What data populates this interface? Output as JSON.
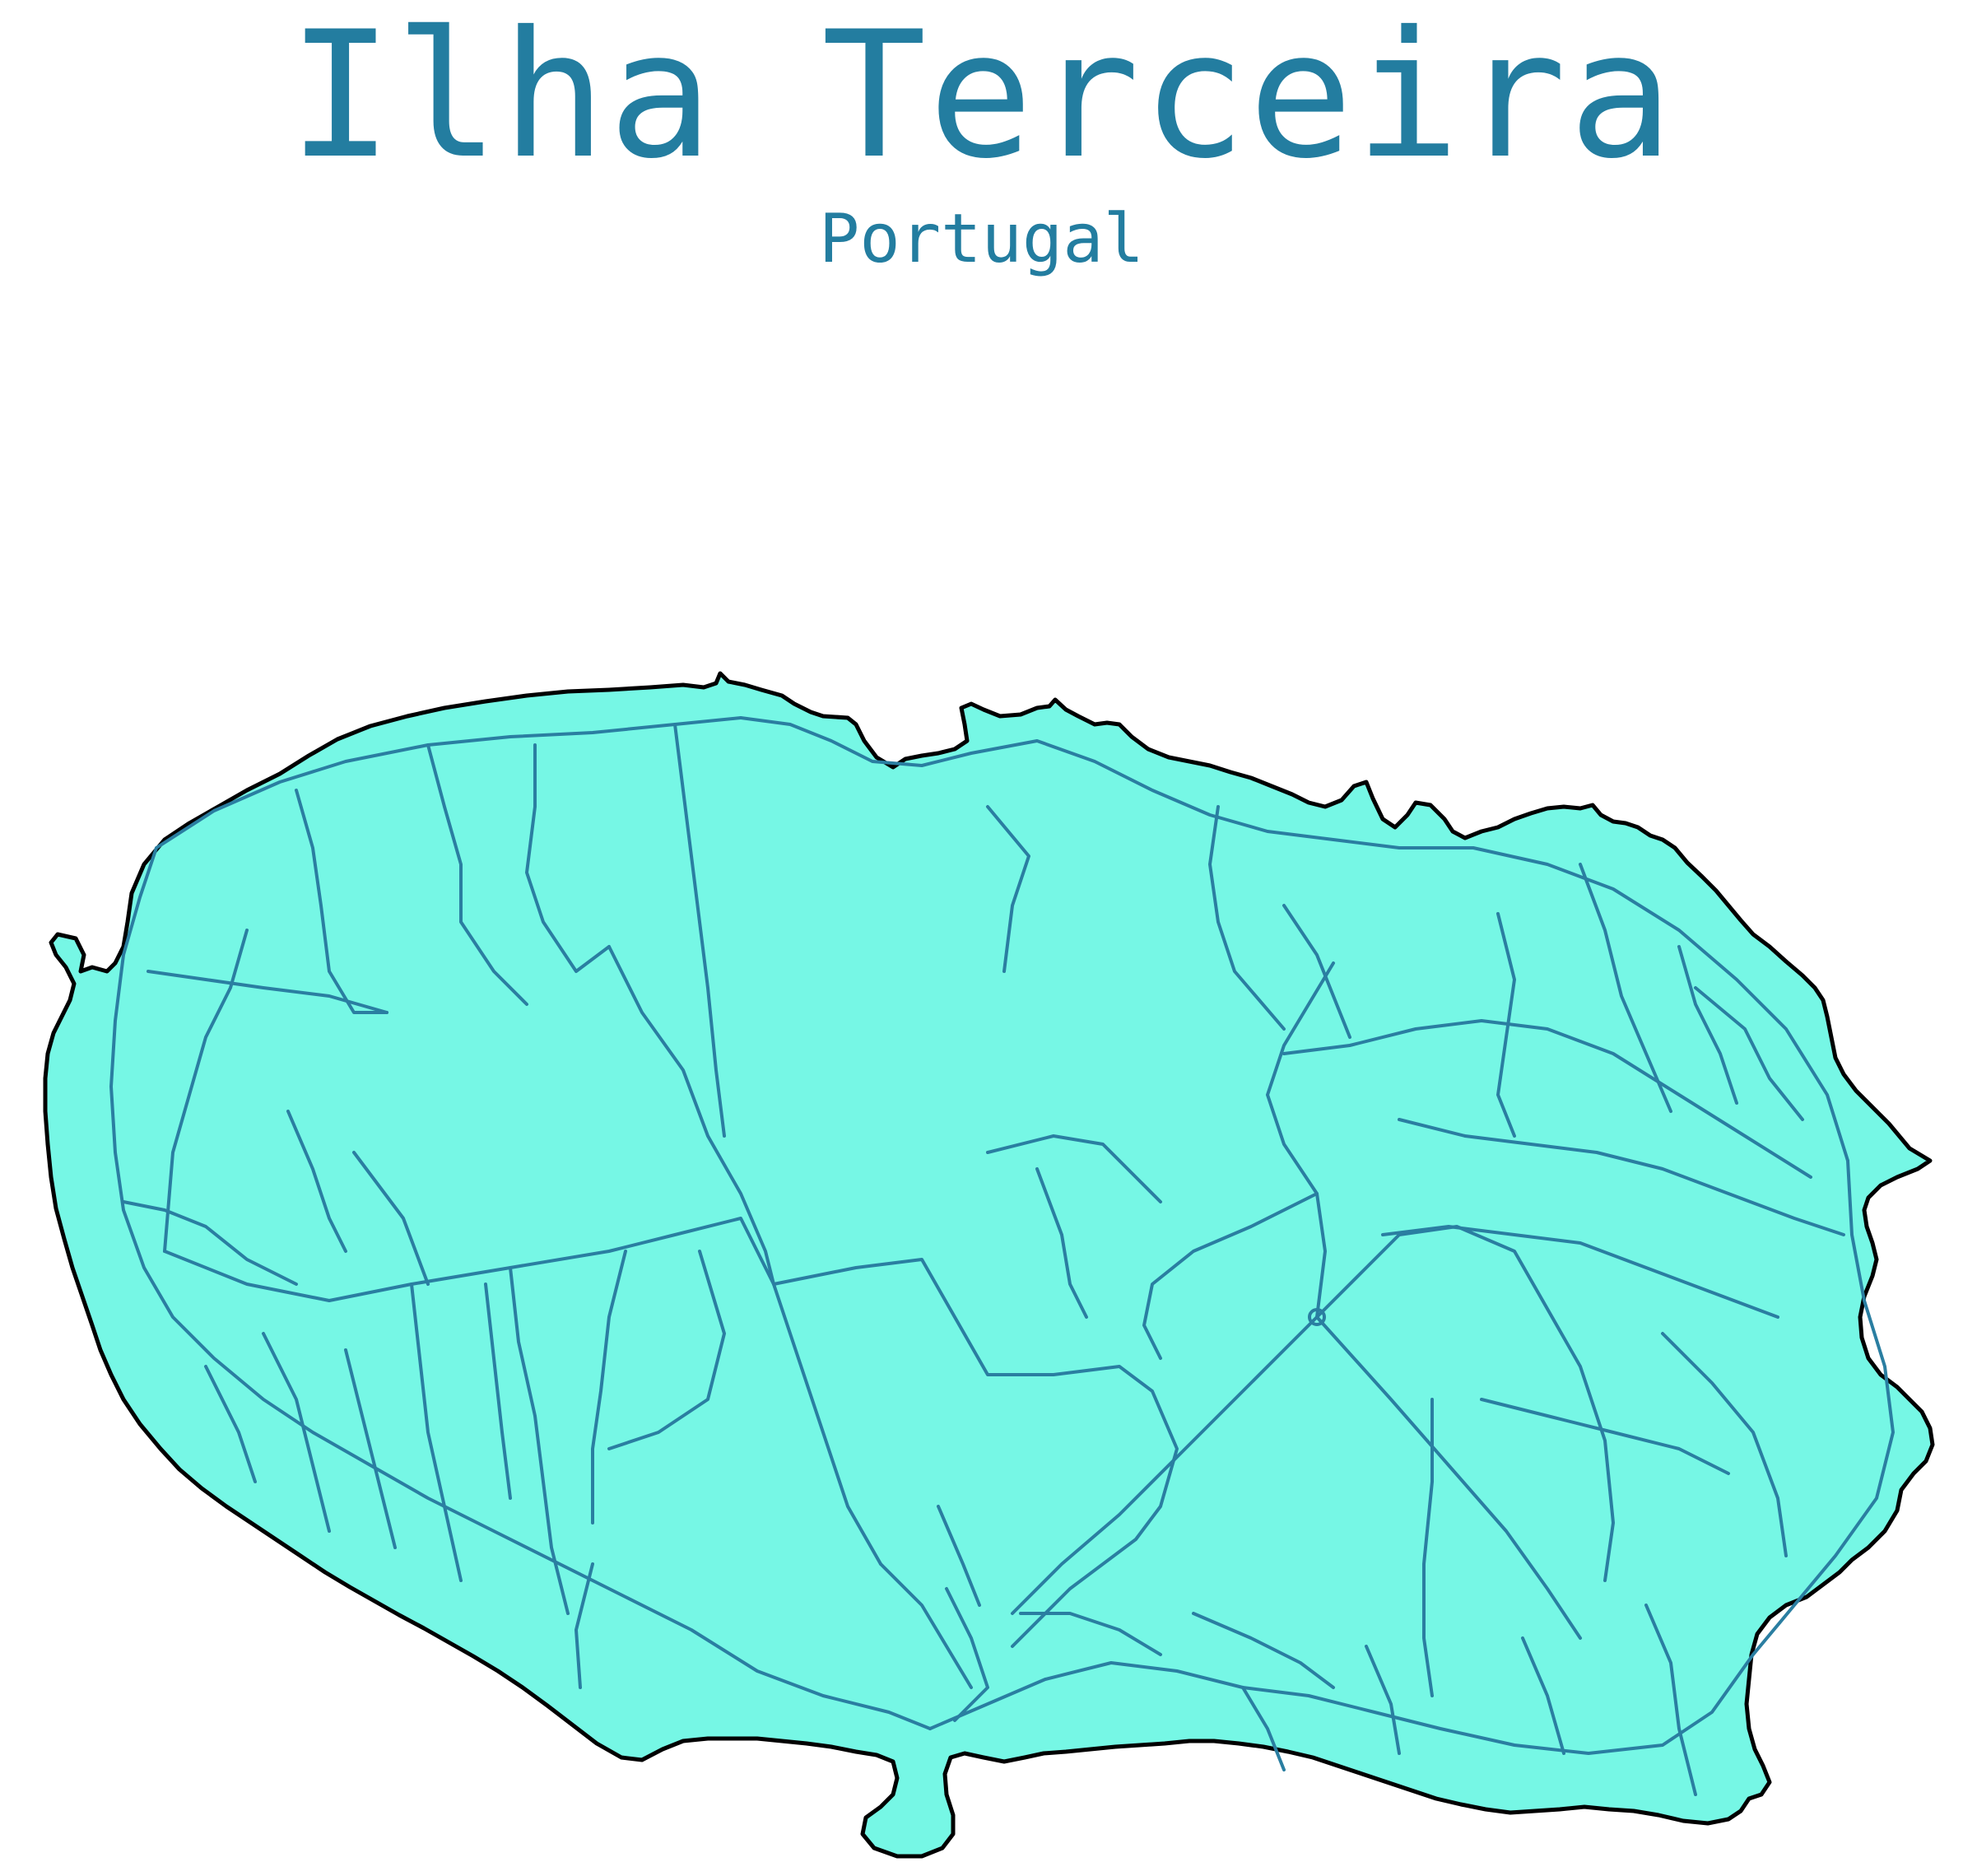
{
  "map": {
    "title": "Ilha Terceira",
    "subtitle": "Portugal"
  },
  "colors": {
    "land": "#76f7e5",
    "coast": "#000000",
    "roads": "#2a7ea1",
    "title": "#237da0",
    "background": "#ffffff"
  }
}
